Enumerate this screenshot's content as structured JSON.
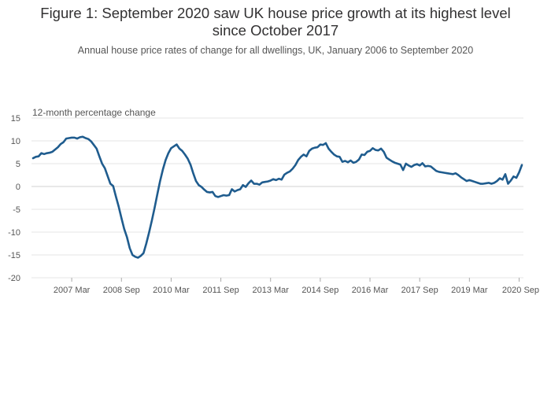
{
  "chart_data": {
    "type": "line",
    "title": [
      "Figure 1: September 2020 saw UK house price growth at its highest level",
      "since October 2017"
    ],
    "subtitle": "Annual house price rates of change for all dwellings, UK, January 2006 to September 2020",
    "ylabel": "12-month percentage change",
    "xlabel": "",
    "ylim": [
      -20,
      15
    ],
    "yticks": [
      15,
      10,
      5,
      0,
      -5,
      -10,
      -15,
      -20
    ],
    "x_ticks": [
      "2007 Mar",
      "2008 Sep",
      "2010 Mar",
      "2011 Sep",
      "2013 Mar",
      "2014 Sep",
      "2016 Mar",
      "2017 Sep",
      "2019 Mar",
      "2020 Sep"
    ],
    "x_tick_month_index": [
      14,
      32,
      50,
      68,
      86,
      104,
      122,
      140,
      158,
      176
    ],
    "grid": true,
    "color": "#1f5c8e",
    "series": [
      {
        "start": "2006 Jan",
        "values": [
          6.2,
          6.5,
          6.6,
          7.3,
          7.1,
          7.3,
          7.4,
          7.6,
          8.1,
          8.6,
          9.3,
          9.7,
          10.5,
          10.6,
          10.7,
          10.7,
          10.5,
          10.8,
          10.9,
          10.6,
          10.4,
          9.9,
          9.1,
          8.3,
          6.6,
          5.0,
          4.0,
          2.3,
          0.6,
          0.1,
          -2.2,
          -4.4,
          -6.9,
          -9.3,
          -11.1,
          -13.5,
          -15.0,
          -15.4,
          -15.6,
          -15.2,
          -14.6,
          -12.5,
          -10.1,
          -7.5,
          -4.7,
          -1.7,
          1.2,
          3.7,
          5.8,
          7.3,
          8.4,
          8.8,
          9.2,
          8.3,
          7.8,
          7.0,
          6.1,
          4.8,
          2.9,
          1.2,
          0.3,
          -0.1,
          -0.7,
          -1.2,
          -1.3,
          -1.2,
          -2.1,
          -2.3,
          -2.1,
          -1.9,
          -2.0,
          -1.9,
          -0.6,
          -1.1,
          -0.8,
          -0.6,
          0.3,
          -0.1,
          0.7,
          1.3,
          0.6,
          0.6,
          0.4,
          0.9,
          1.0,
          1.1,
          1.3,
          1.6,
          1.4,
          1.7,
          1.5,
          2.6,
          3.0,
          3.3,
          3.9,
          4.7,
          5.8,
          6.5,
          7.0,
          6.6,
          7.8,
          8.3,
          8.5,
          8.6,
          9.2,
          9.1,
          9.5,
          8.3,
          7.6,
          7.0,
          6.6,
          6.5,
          5.4,
          5.6,
          5.3,
          5.7,
          5.2,
          5.4,
          5.9,
          7.0,
          6.9,
          7.6,
          7.8,
          8.4,
          8.0,
          7.9,
          8.3,
          7.6,
          6.3,
          5.9,
          5.5,
          5.2,
          5.0,
          4.8,
          3.6,
          5.0,
          4.6,
          4.3,
          4.7,
          4.9,
          4.6,
          5.1,
          4.4,
          4.5,
          4.4,
          3.9,
          3.4,
          3.2,
          3.1,
          3.0,
          2.9,
          2.8,
          2.7,
          2.9,
          2.5,
          2.0,
          1.6,
          1.2,
          1.4,
          1.2,
          1.0,
          0.8,
          0.6,
          0.6,
          0.7,
          0.8,
          0.6,
          0.8,
          1.2,
          1.8,
          1.5,
          2.7,
          0.6,
          1.3,
          2.2,
          1.9,
          3.1,
          4.7
        ]
      }
    ]
  }
}
